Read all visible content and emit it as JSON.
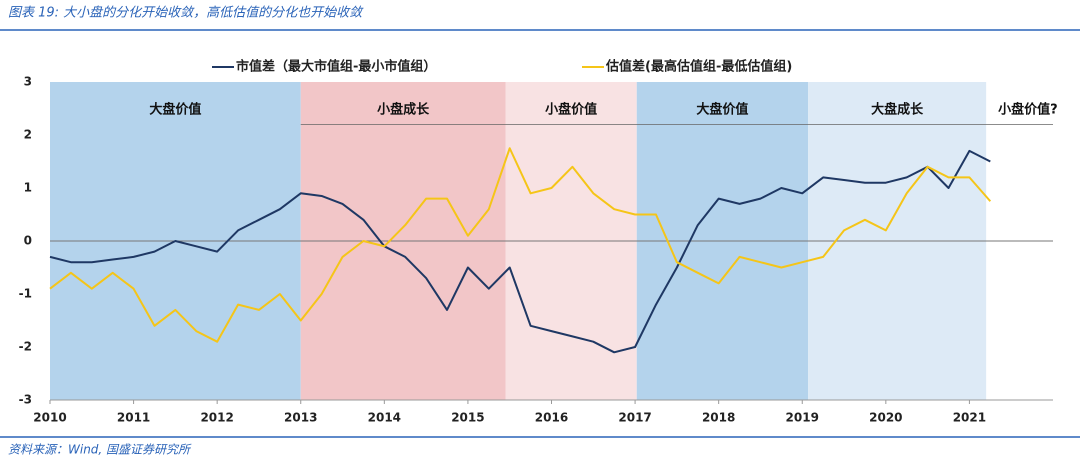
{
  "chart_data": {
    "type": "line",
    "title": "图表 19:  大小盘的分化开始收敛，高低估值的分化也开始收敛",
    "source": "资料来源：Wind, 国盛证券研究所",
    "x": [
      2010,
      2010.25,
      2010.5,
      2010.75,
      2011,
      2011.25,
      2011.5,
      2011.75,
      2012,
      2012.25,
      2012.5,
      2012.75,
      2013,
      2013.25,
      2013.5,
      2013.75,
      2014,
      2014.25,
      2014.5,
      2014.75,
      2015,
      2015.25,
      2015.5,
      2015.75,
      2016,
      2016.25,
      2016.5,
      2016.75,
      2017,
      2017.25,
      2017.5,
      2017.75,
      2018,
      2018.25,
      2018.5,
      2018.75,
      2019,
      2019.25,
      2019.5,
      2019.75,
      2020,
      2020.25,
      2020.5,
      2020.75,
      2021,
      2021.25
    ],
    "series": [
      {
        "name": "市值差（最大市值组-最小市值组）",
        "color": "#1f3864",
        "values": [
          -0.3,
          -0.4,
          -0.4,
          -0.35,
          -0.3,
          -0.2,
          0.0,
          -0.1,
          -0.2,
          0.2,
          0.4,
          0.6,
          0.9,
          0.85,
          0.7,
          0.4,
          -0.1,
          -0.3,
          -0.7,
          -1.3,
          -0.5,
          -0.9,
          -0.5,
          -1.6,
          -1.7,
          -1.8,
          -1.9,
          -2.1,
          -2.0,
          -1.2,
          -0.5,
          0.3,
          0.8,
          0.7,
          0.8,
          1.0,
          0.9,
          1.2,
          1.15,
          1.1,
          1.1,
          1.2,
          1.4,
          1.0,
          1.7,
          1.5
        ]
      },
      {
        "name": "估值差(最高估值组-最低估值组)",
        "color": "#f5c518",
        "values": [
          -0.9,
          -0.6,
          -0.9,
          -0.6,
          -0.9,
          -1.6,
          -1.3,
          -1.7,
          -1.9,
          -1.2,
          -1.3,
          -1.0,
          -1.5,
          -1.0,
          -0.3,
          0.0,
          -0.1,
          0.3,
          0.8,
          0.8,
          0.1,
          0.6,
          1.75,
          0.9,
          1.0,
          1.4,
          0.9,
          0.6,
          0.5,
          0.5,
          -0.4,
          -0.6,
          -0.8,
          -0.3,
          -0.4,
          -0.5,
          -0.4,
          -0.3,
          0.2,
          0.4,
          0.2,
          0.9,
          1.4,
          1.2,
          1.2,
          0.75
        ]
      }
    ],
    "regions": [
      {
        "label": "大盘价值",
        "xlim": [
          2010,
          2013
        ],
        "color": "#b4d3ec"
      },
      {
        "label": "小盘成长",
        "xlim": [
          2013,
          2015.45
        ],
        "color": "#f2c6c8"
      },
      {
        "label": "小盘价值",
        "xlim": [
          2015.45,
          2017.02
        ],
        "color": "#f8e2e3"
      },
      {
        "label": "大盘价值",
        "xlim": [
          2017.02,
          2019.07
        ],
        "color": "#b4d3ec"
      },
      {
        "label": "大盘成长",
        "xlim": [
          2019.07,
          2021.2
        ],
        "color": "#ddeaf6"
      }
    ],
    "annotation": {
      "text": "小盘价值?",
      "x": 2021.7
    },
    "ref_line": 2.2,
    "xlim": [
      2010,
      2022
    ],
    "xticks": [
      2010,
      2011,
      2012,
      2013,
      2014,
      2015,
      2016,
      2017,
      2018,
      2019,
      2020,
      2021
    ],
    "ylim": [
      -3,
      3
    ],
    "yticks": [
      -3,
      -2,
      -1,
      0,
      1,
      2,
      3
    ]
  }
}
